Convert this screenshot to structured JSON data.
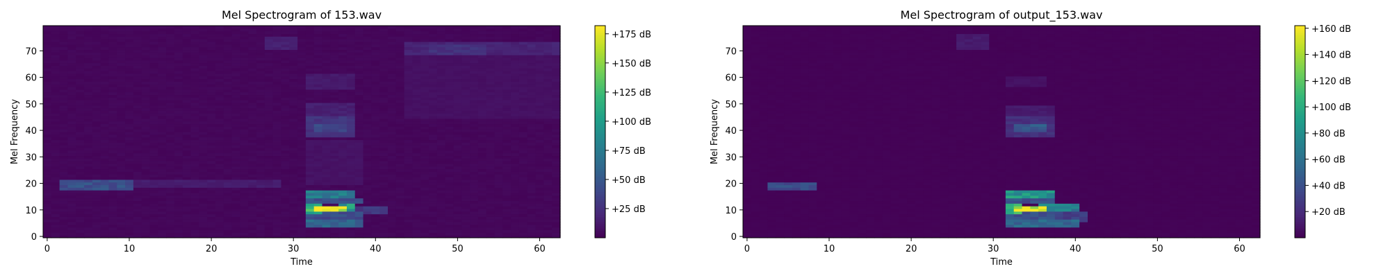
{
  "chart_data": [
    {
      "type": "heatmap",
      "title": "Mel Spectrogram of 153.wav",
      "xlabel": "Time",
      "ylabel": "Mel Frequency",
      "xlim": [
        -0.5,
        62.5
      ],
      "ylim": [
        -0.5,
        79.5
      ],
      "xticks": [
        0,
        10,
        20,
        30,
        40,
        50,
        60
      ],
      "yticks": [
        0,
        10,
        20,
        30,
        40,
        50,
        60,
        70
      ],
      "colormap": [
        "#440154",
        "#482878",
        "#3e4989",
        "#31688e",
        "#26828e",
        "#1f9e89",
        "#35b779",
        "#6ece58",
        "#b5de2b",
        "#fde725"
      ],
      "colorbar": {
        "vmin": 0,
        "vmax": 182,
        "ticks": [
          25,
          50,
          75,
          100,
          125,
          150,
          175
        ],
        "tick_labels": [
          "+25 dB",
          "+50 dB",
          "+75 dB",
          "+100 dB",
          "+125 dB",
          "+150 dB",
          "+175 dB"
        ]
      },
      "background_level": 3,
      "blobs": [
        {
          "t": [
            2,
            10
          ],
          "f": [
            18,
            21
          ],
          "v": 45
        },
        {
          "t": [
            10,
            28
          ],
          "f": [
            19,
            21
          ],
          "v": 14
        },
        {
          "t": [
            31.5,
            33
          ],
          "f": [
            9,
            12.5
          ],
          "v": 120
        },
        {
          "t": [
            33,
            36
          ],
          "f": [
            10,
            11.5
          ],
          "v": 182
        },
        {
          "t": [
            36,
            37
          ],
          "f": [
            10,
            12
          ],
          "v": 95
        },
        {
          "t": [
            32,
            37
          ],
          "f": [
            15,
            17
          ],
          "v": 75
        },
        {
          "t": [
            32,
            38
          ],
          "f": [
            4,
            6
          ],
          "v": 60
        },
        {
          "t": [
            32,
            38
          ],
          "f": [
            7,
            9
          ],
          "v": 42
        },
        {
          "t": [
            32,
            38
          ],
          "f": [
            13,
            14.5
          ],
          "v": 45
        },
        {
          "t": [
            36,
            41
          ],
          "f": [
            9,
            11
          ],
          "v": 30
        },
        {
          "t": [
            32,
            37
          ],
          "f": [
            38,
            45
          ],
          "v": 28
        },
        {
          "t": [
            33,
            36
          ],
          "f": [
            40,
            42
          ],
          "v": 40
        },
        {
          "t": [
            32,
            37
          ],
          "f": [
            46,
            50
          ],
          "v": 16
        },
        {
          "t": [
            32,
            37
          ],
          "f": [
            56,
            61
          ],
          "v": 13
        },
        {
          "t": [
            27,
            30
          ],
          "f": [
            71,
            75
          ],
          "v": 16
        },
        {
          "t": [
            44,
            62
          ],
          "f": [
            69,
            73
          ],
          "v": 18
        },
        {
          "t": [
            47,
            53
          ],
          "f": [
            69,
            72
          ],
          "v": 26
        },
        {
          "t": [
            44,
            62
          ],
          "f": [
            45,
            68
          ],
          "v": 8
        },
        {
          "t": [
            32,
            38
          ],
          "f": [
            20,
            36
          ],
          "v": 9
        }
      ]
    },
    {
      "type": "heatmap",
      "title": "Mel Spectrogram of output_153.wav",
      "xlabel": "Time",
      "ylabel": "Mel Frequency",
      "xlim": [
        -0.5,
        62.5
      ],
      "ylim": [
        -0.5,
        79.5
      ],
      "xticks": [
        0,
        10,
        20,
        30,
        40,
        50,
        60
      ],
      "yticks": [
        0,
        10,
        20,
        30,
        40,
        50,
        60,
        70
      ],
      "colormap": [
        "#440154",
        "#482878",
        "#3e4989",
        "#31688e",
        "#26828e",
        "#1f9e89",
        "#35b779",
        "#6ece58",
        "#b5de2b",
        "#fde725"
      ],
      "colorbar": {
        "vmin": 0,
        "vmax": 162,
        "ticks": [
          20,
          40,
          60,
          80,
          100,
          120,
          140,
          160
        ],
        "tick_labels": [
          "+20 dB",
          "+40 dB",
          "+60 dB",
          "+80 dB",
          "+100 dB",
          "+120 dB",
          "+140 dB",
          "+160 dB"
        ]
      },
      "background_level": 1,
      "blobs": [
        {
          "t": [
            3,
            8
          ],
          "f": [
            18,
            20
          ],
          "v": 38
        },
        {
          "t": [
            31.5,
            33
          ],
          "f": [
            9,
            12.5
          ],
          "v": 115
        },
        {
          "t": [
            33,
            36
          ],
          "f": [
            10,
            11.5
          ],
          "v": 162
        },
        {
          "t": [
            36,
            40
          ],
          "f": [
            10,
            12
          ],
          "v": 70
        },
        {
          "t": [
            32,
            37
          ],
          "f": [
            15,
            17
          ],
          "v": 85
        },
        {
          "t": [
            32,
            40
          ],
          "f": [
            4,
            6
          ],
          "v": 55
        },
        {
          "t": [
            32,
            37
          ],
          "f": [
            7,
            9
          ],
          "v": 40
        },
        {
          "t": [
            32,
            37
          ],
          "f": [
            13,
            14.5
          ],
          "v": 40
        },
        {
          "t": [
            36,
            41
          ],
          "f": [
            6,
            9
          ],
          "v": 30
        },
        {
          "t": [
            33,
            36
          ],
          "f": [
            40,
            42
          ],
          "v": 45
        },
        {
          "t": [
            32,
            37
          ],
          "f": [
            38,
            45
          ],
          "v": 22
        },
        {
          "t": [
            32,
            37
          ],
          "f": [
            46,
            49
          ],
          "v": 12
        },
        {
          "t": [
            26,
            29
          ],
          "f": [
            71,
            76
          ],
          "v": 12
        },
        {
          "t": [
            32,
            36
          ],
          "f": [
            57,
            60
          ],
          "v": 8
        }
      ]
    }
  ]
}
